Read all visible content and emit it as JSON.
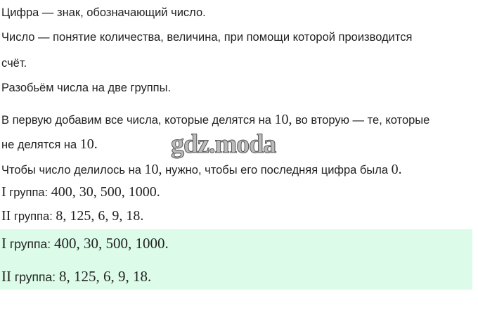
{
  "lines": {
    "l1": "Цифра — знак, обозначающий число.",
    "l2": "Число — понятие количества, величина, при помощи которой производится",
    "l3": "счёт.",
    "l4": "Разобьём числа на две группы.",
    "l5a": "В первую добавим все числа, которые делятся на ",
    "l5m": "10,",
    "l5b": " во вторую — те, которые",
    "l6a": "не делятся на ",
    "l6m": "10.",
    "l7a": "Чтобы число делилось на ",
    "l7m": "10,",
    "l7b": " нужно, чтобы его последняя цифра была ",
    "l7m2": "0."
  },
  "groups": {
    "g1_roman": "I",
    "g2_roman": "II",
    "label": " группа: ",
    "g1_values": "400,  30,  500,  1000.",
    "g2_values": "8,  125,  6,  9,  18."
  },
  "watermark": "gdz.moda",
  "colors": {
    "answer_bg": "#dcfce9"
  }
}
